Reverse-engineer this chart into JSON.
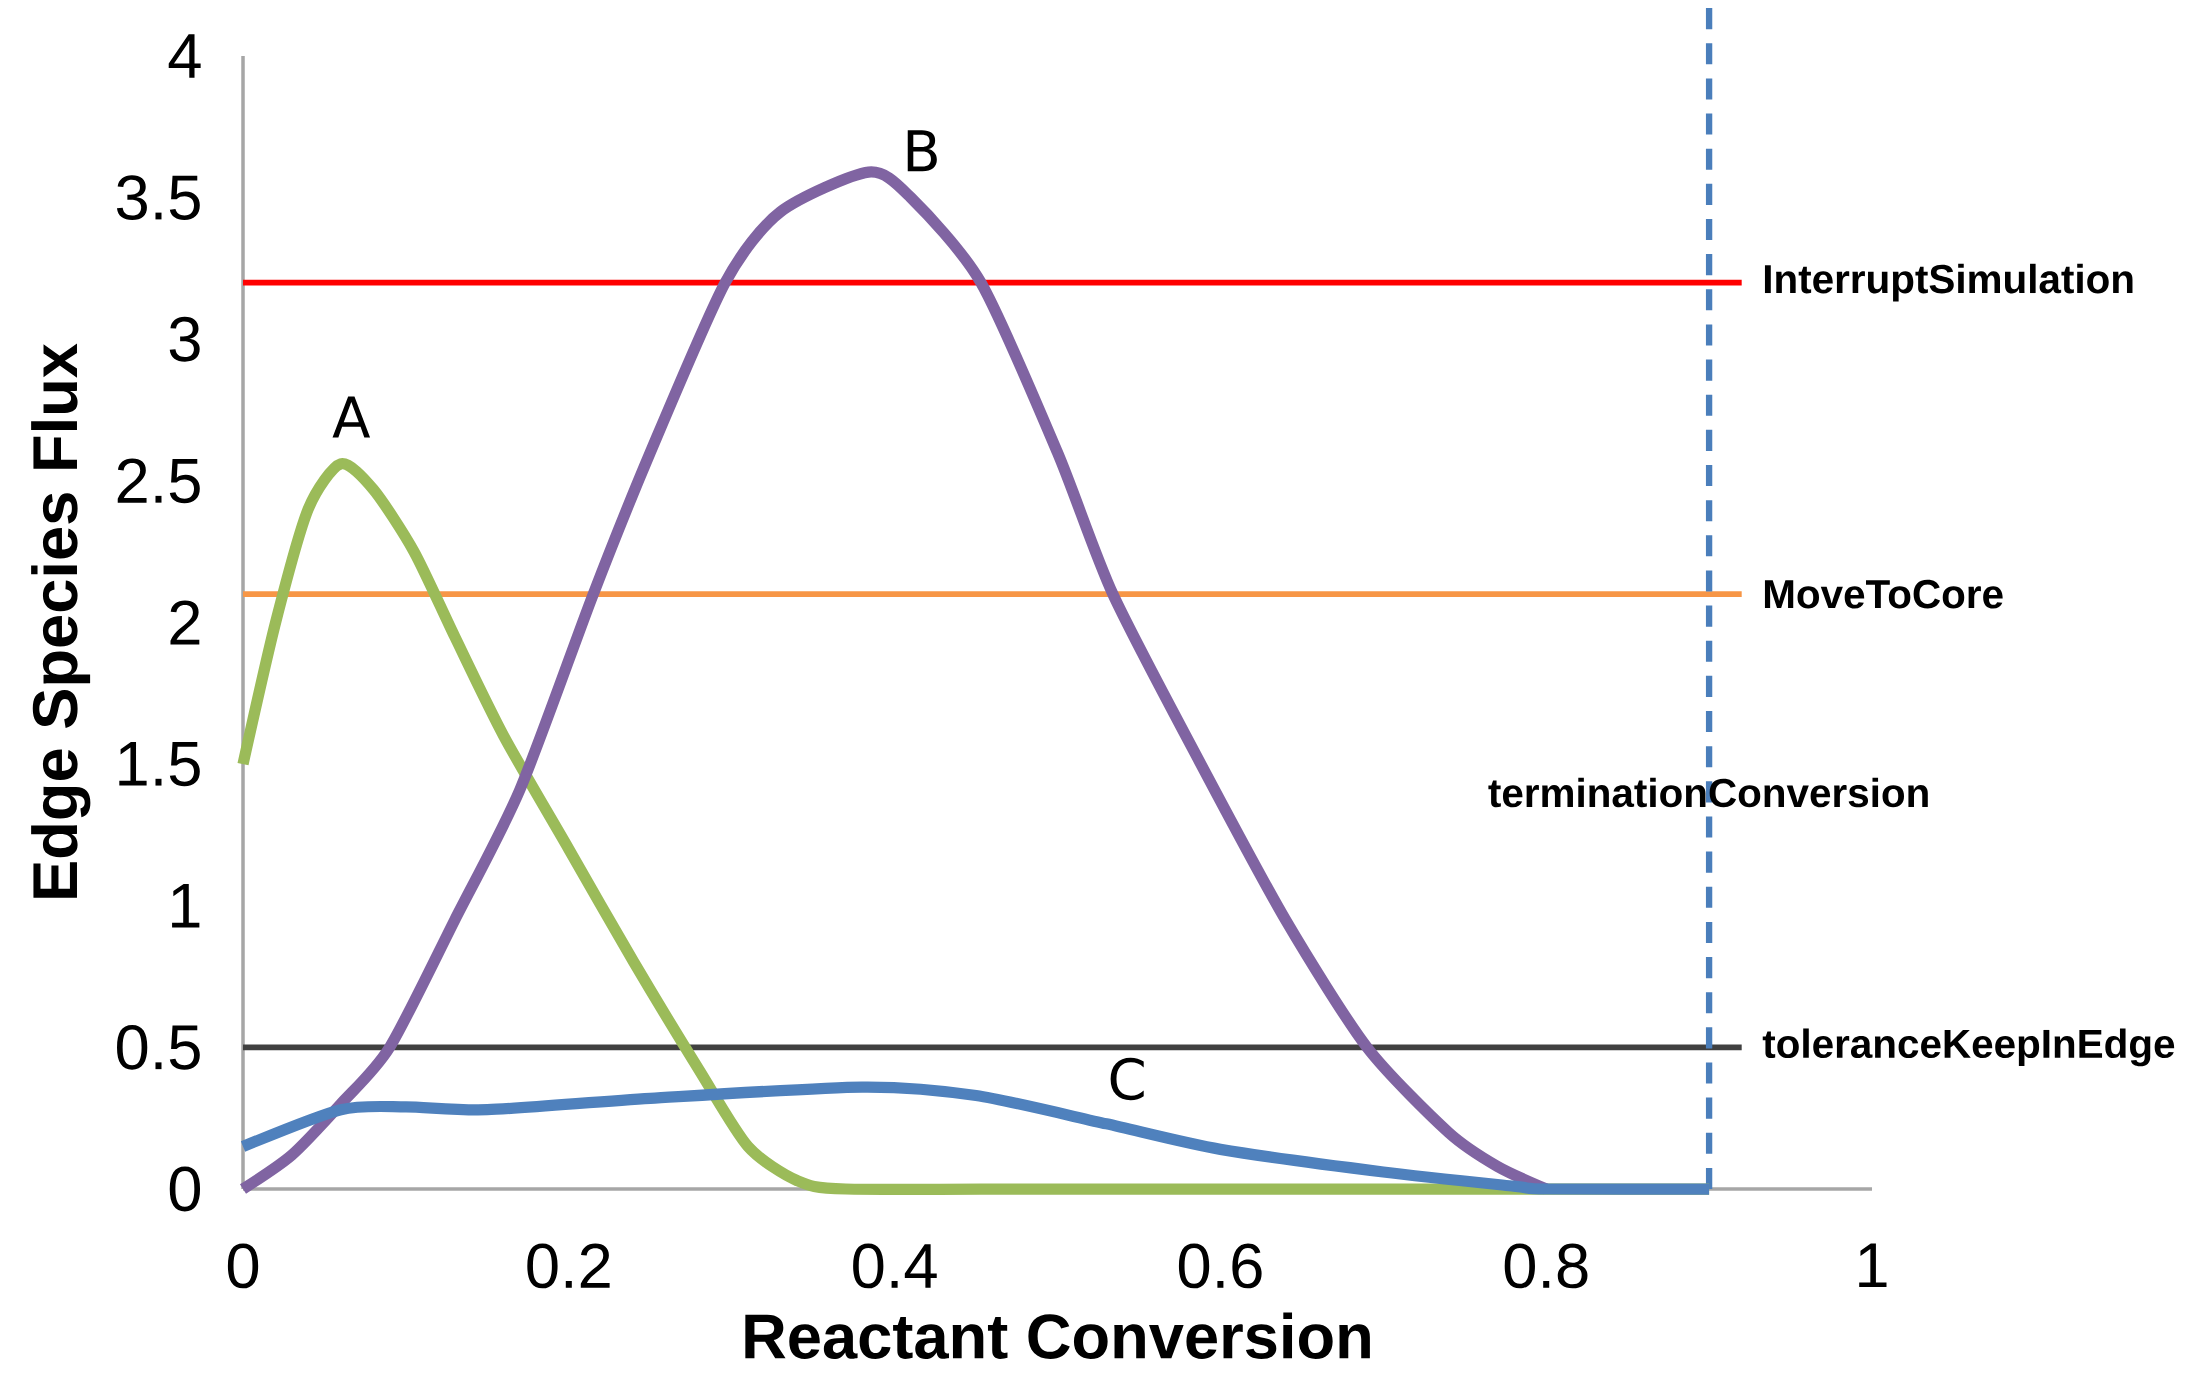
{
  "chart_data": {
    "type": "line",
    "xlabel": "Reactant Conversion",
    "ylabel": "Edge Species Flux",
    "xlim": [
      0,
      1
    ],
    "xticks": [
      0,
      0.2,
      0.4,
      0.6,
      0.8,
      1
    ],
    "ylim": [
      0,
      4
    ],
    "yticks": [
      0,
      0.5,
      1,
      1.5,
      2,
      2.5,
      3,
      3.5,
      4
    ],
    "grid": false,
    "marker": "none",
    "line_style": "solid",
    "series": [
      {
        "color": "#9bbb59",
        "x": [
          0,
          0.02,
          0.04,
          0.06,
          0.08,
          0.105,
          0.13,
          0.16,
          0.2,
          0.24,
          0.28,
          0.31,
          0.34,
          0.37,
          0.5,
          0.7,
          0.9
        ],
        "values": [
          1.5,
          2.0,
          2.4,
          2.56,
          2.47,
          2.25,
          1.95,
          1.6,
          1.2,
          0.8,
          0.42,
          0.15,
          0.03,
          0,
          0,
          0,
          0
        ]
      },
      {
        "color": "#8064a2",
        "x": [
          0,
          0.03,
          0.06,
          0.09,
          0.13,
          0.17,
          0.215,
          0.25,
          0.296,
          0.33,
          0.384,
          0.41,
          0.453,
          0.5,
          0.534,
          0.588,
          0.64,
          0.69,
          0.74,
          0.77,
          0.8
        ],
        "values": [
          0,
          0.12,
          0.3,
          0.5,
          0.95,
          1.41,
          2.1,
          2.6,
          3.2,
          3.45,
          3.59,
          3.5,
          3.2,
          2.6,
          2.1,
          1.5,
          0.95,
          0.5,
          0.2,
          0.08,
          0
        ]
      },
      {
        "color": "#4f81bd",
        "x": [
          0,
          0.06,
          0.1,
          0.15,
          0.25,
          0.38,
          0.45,
          0.53,
          0.6,
          0.7,
          0.78,
          0.8,
          0.9
        ],
        "values": [
          0.15,
          0.28,
          0.29,
          0.28,
          0.32,
          0.36,
          0.33,
          0.23,
          0.14,
          0.06,
          0.01,
          0,
          0
        ]
      }
    ],
    "ref_lines": [
      {
        "axis": "y",
        "value": 3.2,
        "label": "InterruptSimulation",
        "color": "#ff0000"
      },
      {
        "axis": "y",
        "value": 2.1,
        "label": "MoveToCore",
        "color": "#f79646"
      },
      {
        "axis": "y",
        "value": 0.5,
        "label": "toleranceKeepInEdge",
        "color": "#404040"
      },
      {
        "axis": "x",
        "value": 0.9,
        "label": "terminationConversion",
        "color": "#4a7ebb",
        "line_style": "dashed"
      }
    ],
    "annotations": [
      {
        "text": "A",
        "x": 0.06,
        "y": 2.56
      },
      {
        "text": "B",
        "x": 0.41,
        "y": 3.5
      },
      {
        "text": "C",
        "x": 0.536,
        "y": 0.22
      }
    ]
  }
}
